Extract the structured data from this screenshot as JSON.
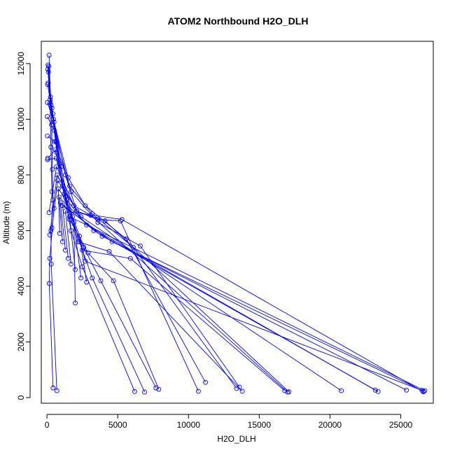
{
  "chart_data": {
    "type": "line",
    "title": "ATOM2 Northbound H2O_DLH",
    "xlabel": "H2O_DLH",
    "ylabel": "Altitude (m)",
    "xlim": [
      -400,
      27300
    ],
    "ylim": [
      -200,
      12800
    ],
    "x_ticks": [
      0,
      5000,
      10000,
      15000,
      20000,
      25000
    ],
    "y_ticks": [
      0,
      2000,
      4000,
      6000,
      8000,
      10000,
      12000
    ],
    "grid": false,
    "legend": "none",
    "series_color": "#0000ff",
    "series": [
      {
        "points": [
          [
            150,
            12300
          ],
          [
            250,
            10800
          ],
          [
            330,
            9800
          ],
          [
            380,
            8200
          ],
          [
            420,
            7100
          ],
          [
            280,
            6000
          ],
          [
            300,
            4800
          ],
          [
            700,
            250
          ]
        ]
      },
      {
        "points": [
          [
            80,
            11950
          ],
          [
            220,
            10700
          ],
          [
            280,
            9000
          ],
          [
            350,
            7400
          ],
          [
            500,
            6800
          ],
          [
            200,
            5000
          ],
          [
            160,
            4100
          ],
          [
            430,
            350
          ]
        ]
      },
      {
        "points": [
          [
            60,
            11800
          ],
          [
            240,
            10600
          ],
          [
            650,
            9200
          ],
          [
            1100,
            7600
          ],
          [
            1700,
            6000
          ],
          [
            2500,
            4700
          ],
          [
            6200,
            220
          ]
        ]
      },
      {
        "points": [
          [
            120,
            11900
          ],
          [
            300,
            10500
          ],
          [
            700,
            8800
          ],
          [
            1300,
            7200
          ],
          [
            2300,
            5600
          ],
          [
            3200,
            4300
          ],
          [
            6900,
            200
          ]
        ]
      },
      {
        "points": [
          [
            100,
            11700
          ],
          [
            350,
            10400
          ],
          [
            900,
            8400
          ],
          [
            1800,
            6500
          ],
          [
            2600,
            5400
          ],
          [
            3800,
            4200
          ],
          [
            7700,
            350
          ]
        ]
      },
      {
        "points": [
          [
            90,
            11300
          ],
          [
            420,
            10200
          ],
          [
            1000,
            8300
          ],
          [
            1600,
            6400
          ],
          [
            2900,
            5200
          ],
          [
            4700,
            4200
          ],
          [
            7900,
            300
          ]
        ]
      },
      {
        "points": [
          [
            40,
            11250
          ],
          [
            460,
            10000
          ],
          [
            1300,
            8000
          ],
          [
            2100,
            6700
          ],
          [
            3600,
            6400
          ],
          [
            5200,
            6350
          ],
          [
            10700,
            230
          ]
        ]
      },
      {
        "points": [
          [
            30,
            10600
          ],
          [
            500,
            9900
          ],
          [
            1500,
            7900
          ],
          [
            2700,
            6900
          ],
          [
            5600,
            5700
          ],
          [
            11200,
            550
          ]
        ]
      },
      {
        "points": [
          [
            20,
            10100
          ],
          [
            520,
            9600
          ],
          [
            1600,
            7600
          ],
          [
            3200,
            6600
          ],
          [
            6100,
            5400
          ],
          [
            13400,
            330
          ]
        ]
      },
      {
        "points": [
          [
            30,
            9400
          ],
          [
            560,
            9200
          ],
          [
            1700,
            7400
          ],
          [
            3600,
            6300
          ],
          [
            6600,
            5450
          ],
          [
            13600,
            380
          ]
        ]
      },
      {
        "points": [
          [
            60,
            8600
          ],
          [
            600,
            8900
          ],
          [
            1200,
            7300
          ],
          [
            2200,
            5600
          ],
          [
            4400,
            5250
          ],
          [
            13800,
            230
          ]
        ]
      },
      {
        "points": [
          [
            40,
            8550
          ],
          [
            650,
            8600
          ],
          [
            1400,
            7100
          ],
          [
            2500,
            5300
          ],
          [
            5900,
            5000
          ],
          [
            16800,
            250
          ]
        ]
      },
      {
        "points": [
          [
            150,
            6650
          ],
          [
            680,
            8300
          ],
          [
            1900,
            6900
          ],
          [
            3100,
            6550
          ],
          [
            17000,
            200
          ]
        ]
      },
      {
        "points": [
          [
            200,
            5850
          ],
          [
            720,
            8000
          ],
          [
            2100,
            6700
          ],
          [
            4100,
            6350
          ],
          [
            17100,
            210
          ]
        ]
      },
      {
        "points": [
          [
            350,
            6100
          ],
          [
            760,
            7800
          ],
          [
            2400,
            6500
          ],
          [
            20800,
            250
          ]
        ]
      },
      {
        "points": [
          [
            900,
            5900
          ],
          [
            800,
            7500
          ],
          [
            2800,
            6200
          ],
          [
            23200,
            270
          ]
        ]
      },
      {
        "points": [
          [
            1100,
            5600
          ],
          [
            850,
            7200
          ],
          [
            3300,
            6000
          ],
          [
            23400,
            220
          ]
        ]
      },
      {
        "points": [
          [
            1300,
            5300
          ],
          [
            950,
            7000
          ],
          [
            3900,
            5800
          ],
          [
            25400,
            270
          ]
        ]
      },
      {
        "points": [
          [
            1500,
            5000
          ],
          [
            1100,
            6900
          ],
          [
            4600,
            5600
          ],
          [
            26600,
            230
          ]
        ]
      },
      {
        "points": [
          [
            1700,
            4800
          ],
          [
            1300,
            6700
          ],
          [
            5300,
            6400
          ],
          [
            26600,
            210
          ]
        ]
      },
      {
        "points": [
          [
            2000,
            4600
          ],
          [
            1600,
            6500
          ],
          [
            26700,
            250
          ]
        ]
      },
      {
        "points": [
          [
            2400,
            4300
          ],
          [
            1900,
            6300
          ],
          [
            2000,
            3400
          ]
        ]
      },
      {
        "points": [
          [
            2800,
            4150
          ],
          [
            2300,
            5800
          ],
          [
            2700,
            4900
          ],
          [
            26500,
            260
          ]
        ]
      }
    ]
  }
}
